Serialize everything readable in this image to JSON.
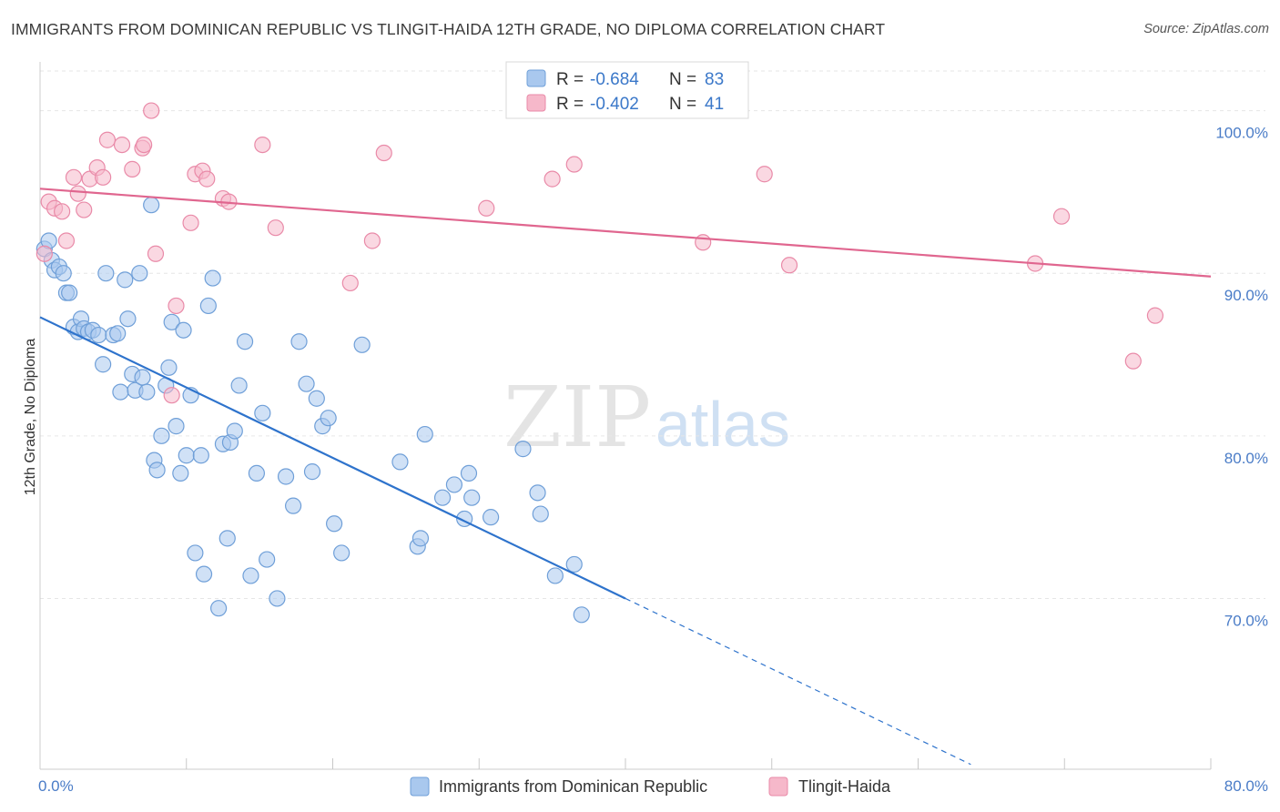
{
  "title": "IMMIGRANTS FROM DOMINICAN REPUBLIC VS TLINGIT-HAIDA 12TH GRADE, NO DIPLOMA CORRELATION CHART",
  "source": "Source: ZipAtlas.com",
  "watermark": {
    "zip": "ZIP",
    "atlas": "atlas"
  },
  "colors": {
    "blue_fill": "#a9c8ee",
    "blue_stroke": "#6f9fd8",
    "blue_line": "#2e73cc",
    "pink_fill": "#f6b8ca",
    "pink_stroke": "#e98aa8",
    "pink_line": "#e0668f",
    "tick_text": "#4a7cc7",
    "grid": "#e6e6e6"
  },
  "legend": {
    "rows": [
      {
        "r_label": "R = ",
        "r_value": "-0.684",
        "n_label": "N = ",
        "n_value": "83"
      },
      {
        "r_label": "R = ",
        "r_value": "-0.402",
        "n_label": "N = ",
        "n_value": "41"
      }
    ]
  },
  "chart_data": {
    "type": "scatter",
    "xlabel": "",
    "ylabel": "12th Grade, No Diploma",
    "xlim": [
      0,
      80
    ],
    "ylim": [
      59.5,
      103
    ],
    "x_tick_labels": [
      {
        "value": 0,
        "label": "0.0%"
      },
      {
        "value": 80,
        "label": "80.0%"
      }
    ],
    "y_ticks": [
      {
        "value": 70,
        "label": "70.0%"
      },
      {
        "value": 80,
        "label": "80.0%"
      },
      {
        "value": 90,
        "label": "90.0%"
      },
      {
        "value": 100,
        "label": "100.0%"
      }
    ],
    "grid": "horizontal dashed",
    "legend_position": "top-center",
    "series": [
      {
        "name": "Immigrants from Dominican Republic",
        "color": "#a9c8ee",
        "trend": {
          "x": [
            0,
            40
          ],
          "y": [
            87.3,
            70.0
          ],
          "dashed_extension_to_x": 63.6
        },
        "points": [
          [
            0.3,
            91.5
          ],
          [
            0.6,
            92.0
          ],
          [
            0.8,
            90.8
          ],
          [
            1.0,
            90.2
          ],
          [
            1.3,
            90.4
          ],
          [
            1.6,
            90.0
          ],
          [
            1.8,
            88.8
          ],
          [
            2.0,
            88.8
          ],
          [
            2.3,
            86.7
          ],
          [
            2.6,
            86.4
          ],
          [
            2.8,
            87.2
          ],
          [
            3.0,
            86.6
          ],
          [
            3.3,
            86.4
          ],
          [
            3.6,
            86.5
          ],
          [
            4.0,
            86.2
          ],
          [
            4.3,
            84.4
          ],
          [
            4.5,
            90.0
          ],
          [
            5.0,
            86.2
          ],
          [
            5.3,
            86.3
          ],
          [
            5.5,
            82.7
          ],
          [
            5.8,
            89.6
          ],
          [
            6.0,
            87.2
          ],
          [
            6.3,
            83.8
          ],
          [
            6.5,
            82.8
          ],
          [
            6.8,
            90.0
          ],
          [
            7.0,
            83.6
          ],
          [
            7.3,
            82.7
          ],
          [
            7.6,
            94.2
          ],
          [
            7.8,
            78.5
          ],
          [
            8.0,
            77.9
          ],
          [
            8.3,
            80.0
          ],
          [
            8.6,
            83.1
          ],
          [
            8.8,
            84.2
          ],
          [
            9.0,
            87.0
          ],
          [
            9.3,
            80.6
          ],
          [
            9.6,
            77.7
          ],
          [
            9.8,
            86.5
          ],
          [
            10.0,
            78.8
          ],
          [
            10.3,
            82.5
          ],
          [
            10.6,
            72.8
          ],
          [
            11.0,
            78.8
          ],
          [
            11.2,
            71.5
          ],
          [
            11.5,
            88.0
          ],
          [
            11.8,
            89.7
          ],
          [
            12.2,
            69.4
          ],
          [
            12.5,
            79.5
          ],
          [
            12.8,
            73.7
          ],
          [
            13.0,
            79.6
          ],
          [
            13.3,
            80.3
          ],
          [
            13.6,
            83.1
          ],
          [
            14.0,
            85.8
          ],
          [
            14.4,
            71.4
          ],
          [
            14.8,
            77.7
          ],
          [
            15.2,
            81.4
          ],
          [
            15.5,
            72.4
          ],
          [
            16.2,
            70.0
          ],
          [
            16.8,
            77.5
          ],
          [
            17.3,
            75.7
          ],
          [
            17.7,
            85.8
          ],
          [
            18.2,
            83.2
          ],
          [
            18.6,
            77.8
          ],
          [
            18.9,
            82.3
          ],
          [
            19.3,
            80.6
          ],
          [
            19.7,
            81.1
          ],
          [
            20.1,
            74.6
          ],
          [
            20.6,
            72.8
          ],
          [
            22.0,
            85.6
          ],
          [
            24.6,
            78.4
          ],
          [
            25.8,
            73.2
          ],
          [
            26.0,
            73.7
          ],
          [
            26.3,
            80.1
          ],
          [
            27.5,
            76.2
          ],
          [
            28.3,
            77.0
          ],
          [
            29.0,
            74.9
          ],
          [
            29.3,
            77.7
          ],
          [
            29.5,
            76.2
          ],
          [
            30.8,
            75.0
          ],
          [
            33.0,
            79.2
          ],
          [
            34.0,
            76.5
          ],
          [
            34.2,
            75.2
          ],
          [
            35.2,
            71.4
          ],
          [
            36.5,
            72.1
          ],
          [
            37.0,
            69.0
          ]
        ]
      },
      {
        "name": "Tlingit-Haida",
        "color": "#f6b8ca",
        "trend": {
          "x": [
            0,
            80
          ],
          "y": [
            95.2,
            89.8
          ]
        },
        "points": [
          [
            0.3,
            91.2
          ],
          [
            0.6,
            94.4
          ],
          [
            1.0,
            94.0
          ],
          [
            1.5,
            93.8
          ],
          [
            1.8,
            92.0
          ],
          [
            2.3,
            95.9
          ],
          [
            2.6,
            94.9
          ],
          [
            3.0,
            93.9
          ],
          [
            3.4,
            95.8
          ],
          [
            3.9,
            96.5
          ],
          [
            4.3,
            95.9
          ],
          [
            4.6,
            98.2
          ],
          [
            5.6,
            97.9
          ],
          [
            6.3,
            96.4
          ],
          [
            7.0,
            97.7
          ],
          [
            7.1,
            97.9
          ],
          [
            7.6,
            100.0
          ],
          [
            7.9,
            91.2
          ],
          [
            9.0,
            82.5
          ],
          [
            9.3,
            88.0
          ],
          [
            10.3,
            93.1
          ],
          [
            10.6,
            96.1
          ],
          [
            11.1,
            96.3
          ],
          [
            11.4,
            95.8
          ],
          [
            12.5,
            94.6
          ],
          [
            12.9,
            94.4
          ],
          [
            15.2,
            97.9
          ],
          [
            16.1,
            92.8
          ],
          [
            21.2,
            89.4
          ],
          [
            22.7,
            92.0
          ],
          [
            23.5,
            97.4
          ],
          [
            30.5,
            94.0
          ],
          [
            35.0,
            95.8
          ],
          [
            36.5,
            96.7
          ],
          [
            45.3,
            91.9
          ],
          [
            49.5,
            96.1
          ],
          [
            51.2,
            90.5
          ],
          [
            68.0,
            90.6
          ],
          [
            69.8,
            93.5
          ],
          [
            74.7,
            84.6
          ],
          [
            76.2,
            87.4
          ]
        ]
      }
    ]
  }
}
